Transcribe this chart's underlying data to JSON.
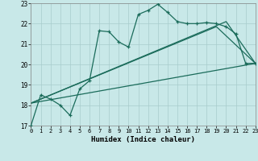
{
  "xlabel": "Humidex (Indice chaleur)",
  "bg_color": "#c8e8e8",
  "grid_color": "#a8cccc",
  "line_color": "#1a6b5a",
  "xlim": [
    0,
    23
  ],
  "ylim": [
    17,
    23
  ],
  "yticks": [
    17,
    18,
    19,
    20,
    21,
    22,
    23
  ],
  "xticks": [
    0,
    1,
    2,
    3,
    4,
    5,
    6,
    7,
    8,
    9,
    10,
    11,
    12,
    13,
    14,
    15,
    16,
    17,
    18,
    19,
    20,
    21,
    22,
    23
  ],
  "main_x": [
    0,
    1,
    2,
    3,
    4,
    5,
    6,
    7,
    8,
    9,
    10,
    11,
    12,
    13,
    14,
    15,
    16,
    17,
    18,
    19,
    20,
    21,
    22,
    23
  ],
  "main_y": [
    17.0,
    18.5,
    18.3,
    18.0,
    17.5,
    18.8,
    19.2,
    21.65,
    21.6,
    21.1,
    20.85,
    22.45,
    22.65,
    22.95,
    22.55,
    22.1,
    22.0,
    22.0,
    22.05,
    22.0,
    21.85,
    21.5,
    20.05,
    20.05
  ],
  "line2_x": [
    0,
    23
  ],
  "line2_y": [
    18.1,
    20.05
  ],
  "line3_x": [
    0,
    20,
    23
  ],
  "line3_y": [
    18.1,
    22.1,
    20.05
  ],
  "line4_x": [
    0,
    19,
    23
  ],
  "line4_y": [
    18.1,
    21.85,
    20.05
  ]
}
